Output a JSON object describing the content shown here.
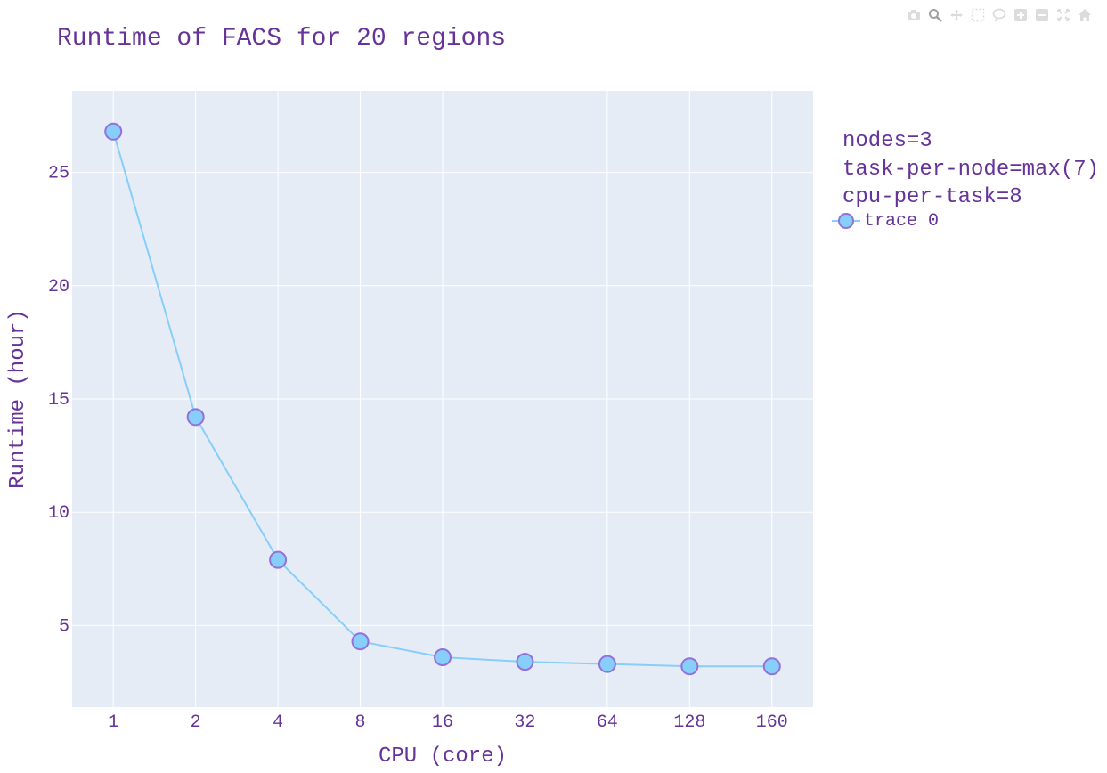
{
  "chart_data": {
    "type": "line",
    "title": "Runtime of FACS for 20 regions",
    "xlabel": "CPU (core)",
    "ylabel": "Runtime (hour)",
    "categories": [
      "1",
      "2",
      "4",
      "8",
      "16",
      "32",
      "64",
      "128",
      "160"
    ],
    "series": [
      {
        "name": "trace 0",
        "values": [
          26.8,
          14.2,
          7.9,
          4.3,
          3.6,
          3.4,
          3.3,
          3.2,
          3.2
        ]
      }
    ],
    "ylim": [
      1.4,
      28.6
    ],
    "yticks": [
      5,
      10,
      15,
      20,
      25
    ],
    "grid": true,
    "legend_position": "top-right",
    "colors": {
      "line": "#87cefa",
      "marker_fill": "#87cefa",
      "marker_edge": "#9370db",
      "text": "#663399",
      "plot_bg": "#e5ecf6",
      "grid": "#ffffff"
    }
  },
  "legend": {
    "title_lines": [
      "nodes=3",
      "task-per-node=max(7)",
      "cpu-per-task=8"
    ],
    "item_label": "trace 0"
  },
  "modebar": {
    "icons": [
      "camera-icon",
      "zoom-icon",
      "pan-icon",
      "box-select-icon",
      "lasso-icon",
      "zoom-in-icon",
      "zoom-out-icon",
      "autoscale-icon",
      "home-icon"
    ]
  }
}
